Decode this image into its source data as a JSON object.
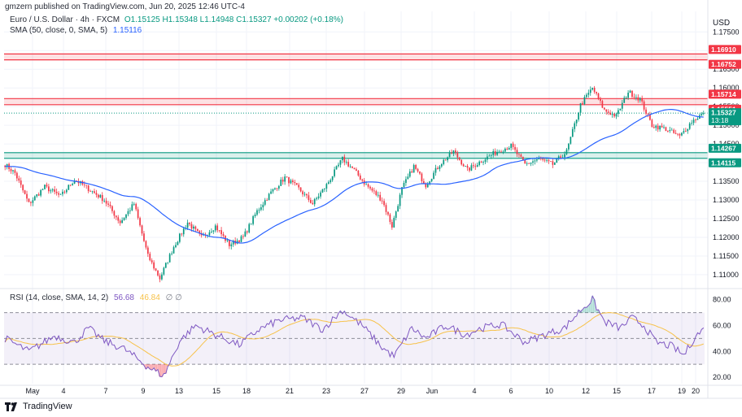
{
  "header": {
    "text": "gmzern published on TradingView.com, Jun 20, 2025 12:46 UTC-4"
  },
  "legend": {
    "symbol": "Euro / U.S. Dollar · 4h · FXCM",
    "ohlc": "O1.15125 H1.15348 L1.14948 C1.15327 +0.00202 (+0.18%)",
    "sma_label": "SMA (50, close, 0, SMA, 5)",
    "sma_value": "1.15116",
    "rsi_label": "RSI (14, close, SMA, 14, 2)",
    "rsi_value": "56.68",
    "rsi_ma_value": "46.84",
    "rsi_empty": "∅ ∅"
  },
  "currency": "USD",
  "branding": "TradingView",
  "colors": {
    "up": "#089981",
    "down": "#f23645",
    "sma": "#2962ff",
    "rsi": "#7e57c2",
    "rsi_ma": "#f7c24a",
    "resistance_zone": "#f23645",
    "support_zone": "#089981"
  },
  "chart_data": {
    "type": "candlestick",
    "price_axis": {
      "ylim": [
        1.1065,
        1.1805
      ],
      "ticks": [
        "1.17500",
        "1.17000",
        "1.16500",
        "1.16000",
        "1.15500",
        "1.15000",
        "1.14500",
        "1.14000",
        "1.13500",
        "1.13000",
        "1.12500",
        "1.12000",
        "1.11500",
        "1.11000"
      ]
    },
    "rsi_axis": {
      "ylim": [
        15,
        88
      ],
      "ticks": [
        "80.00",
        "60.00",
        "40.00",
        "20.00"
      ],
      "bands": [
        30,
        50,
        70
      ]
    },
    "x_ticks": [
      "May",
      "4",
      "7",
      "9",
      "13",
      "15",
      "18",
      "21",
      "23",
      "27",
      "29",
      "Jun",
      "4",
      "6",
      "10",
      "12",
      "15",
      "17",
      "19",
      "20"
    ],
    "zones": [
      {
        "type": "resistance",
        "labels": [
          "1.16910",
          "1.16752"
        ],
        "top": 1.1691,
        "bottom": 1.16752
      },
      {
        "type": "resistance",
        "labels": [
          "1.15714",
          "1.15551"
        ],
        "top": 1.15714,
        "bottom": 1.15551
      },
      {
        "type": "support",
        "labels": [
          "1.14267",
          "1.14115"
        ],
        "top": 1.14267,
        "bottom": 1.14115
      }
    ],
    "last_price": {
      "label": "1.15327",
      "countdown": "13:18",
      "value": 1.15327
    },
    "key_points": [
      [
        0,
        1.1395
      ],
      [
        5,
        1.1372
      ],
      [
        12,
        1.129
      ],
      [
        20,
        1.1335
      ],
      [
        28,
        1.131
      ],
      [
        35,
        1.1355
      ],
      [
        42,
        1.133
      ],
      [
        50,
        1.13
      ],
      [
        58,
        1.124
      ],
      [
        65,
        1.129
      ],
      [
        72,
        1.115
      ],
      [
        78,
        1.109
      ],
      [
        85,
        1.1175
      ],
      [
        92,
        1.124
      ],
      [
        99,
        1.12
      ],
      [
        106,
        1.123
      ],
      [
        113,
        1.118
      ],
      [
        120,
        1.12
      ],
      [
        127,
        1.127
      ],
      [
        134,
        1.132
      ],
      [
        141,
        1.136
      ],
      [
        148,
        1.133
      ],
      [
        155,
        1.129
      ],
      [
        162,
        1.134
      ],
      [
        170,
        1.141
      ],
      [
        175,
        1.1385
      ],
      [
        182,
        1.134
      ],
      [
        190,
        1.13
      ],
      [
        195,
        1.123
      ],
      [
        200,
        1.133
      ],
      [
        206,
        1.139
      ],
      [
        212,
        1.134
      ],
      [
        219,
        1.1395
      ],
      [
        226,
        1.143
      ],
      [
        233,
        1.138
      ],
      [
        240,
        1.1405
      ],
      [
        248,
        1.143
      ],
      [
        255,
        1.1445
      ],
      [
        262,
        1.1395
      ],
      [
        269,
        1.141
      ],
      [
        276,
        1.1395
      ],
      [
        283,
        1.143
      ],
      [
        290,
        1.1555
      ],
      [
        296,
        1.16
      ],
      [
        302,
        1.154
      ],
      [
        308,
        1.1525
      ],
      [
        314,
        1.159
      ],
      [
        320,
        1.157
      ],
      [
        326,
        1.15
      ],
      [
        333,
        1.149
      ],
      [
        340,
        1.147
      ],
      [
        346,
        1.151
      ],
      [
        352,
        1.1533
      ]
    ],
    "candle_count": 353,
    "sma_start_value": 1.139,
    "rsi_key_points": [
      [
        0,
        50
      ],
      [
        12,
        40
      ],
      [
        25,
        52
      ],
      [
        35,
        47
      ],
      [
        42,
        58
      ],
      [
        50,
        48
      ],
      [
        60,
        42
      ],
      [
        72,
        28
      ],
      [
        80,
        21
      ],
      [
        88,
        48
      ],
      [
        96,
        60
      ],
      [
        106,
        53
      ],
      [
        118,
        45
      ],
      [
        128,
        57
      ],
      [
        138,
        64
      ],
      [
        150,
        66
      ],
      [
        160,
        57
      ],
      [
        170,
        72
      ],
      [
        180,
        60
      ],
      [
        190,
        43
      ],
      [
        196,
        36
      ],
      [
        205,
        58
      ],
      [
        212,
        50
      ],
      [
        222,
        60
      ],
      [
        232,
        53
      ],
      [
        240,
        58
      ],
      [
        250,
        61
      ],
      [
        262,
        47
      ],
      [
        272,
        53
      ],
      [
        282,
        58
      ],
      [
        290,
        72
      ],
      [
        296,
        80
      ],
      [
        302,
        63
      ],
      [
        310,
        58
      ],
      [
        316,
        66
      ],
      [
        322,
        60
      ],
      [
        328,
        47
      ],
      [
        336,
        44
      ],
      [
        342,
        37
      ],
      [
        348,
        52
      ],
      [
        352,
        57
      ]
    ]
  }
}
